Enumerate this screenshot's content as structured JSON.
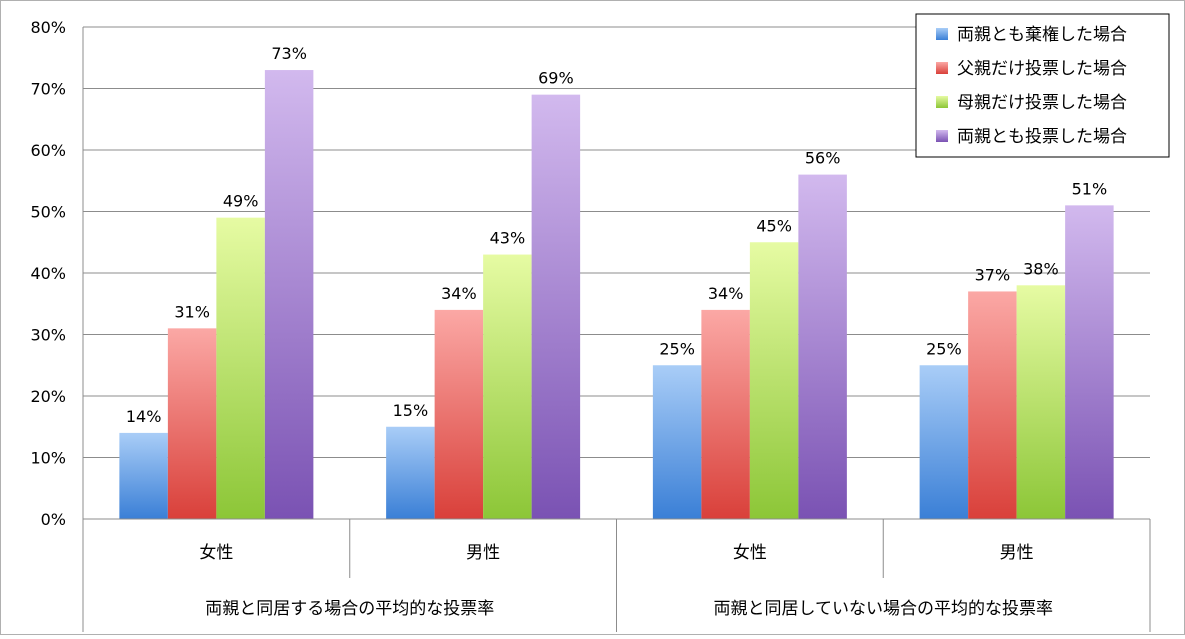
{
  "chart_data": {
    "type": "bar",
    "title": "",
    "xlabel": "",
    "ylabel": "",
    "ylim": [
      0,
      80
    ],
    "yticks": [
      0,
      10,
      20,
      30,
      40,
      50,
      60,
      70,
      80
    ],
    "ytick_labels": [
      "0%",
      "10%",
      "20%",
      "30%",
      "40%",
      "50%",
      "60%",
      "70%",
      "80%"
    ],
    "grid": true,
    "legend_position": "top-right",
    "group_labels": [
      "両親と同居する場合の平均的な投票率",
      "両親と同居していない場合の平均的な投票率"
    ],
    "categories": [
      "女性",
      "男性",
      "女性",
      "男性"
    ],
    "series": [
      {
        "name": "両親とも棄権した場合",
        "values": [
          14,
          15,
          25,
          25
        ],
        "value_labels": [
          "14%",
          "15%",
          "25%",
          "25%"
        ],
        "color_light": "#a9cdf7",
        "color_dark": "#3a7fd6"
      },
      {
        "name": "父親だけ投票した場合",
        "values": [
          31,
          34,
          34,
          37
        ],
        "value_labels": [
          "31%",
          "34%",
          "34%",
          "37%"
        ],
        "color_light": "#fba8a5",
        "color_dark": "#d9403a"
      },
      {
        "name": "母親だけ投票した場合",
        "values": [
          49,
          43,
          45,
          38
        ],
        "value_labels": [
          "49%",
          "43%",
          "45%",
          "38%"
        ],
        "color_light": "#e6fba3",
        "color_dark": "#8cc637"
      },
      {
        "name": "両親とも投票した場合",
        "values": [
          73,
          69,
          56,
          51
        ],
        "value_labels": [
          "73%",
          "69%",
          "56%",
          "51%"
        ],
        "color_light": "#d2b9ee",
        "color_dark": "#7a52b3"
      }
    ]
  }
}
